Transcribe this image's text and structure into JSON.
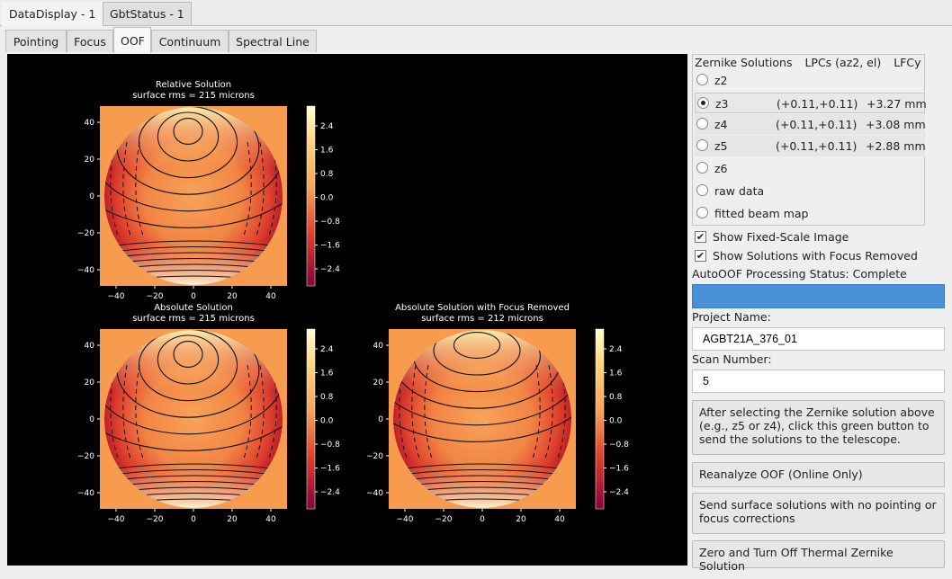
{
  "window_tabs": [
    {
      "label": "DataDisplay - 1",
      "active": true
    },
    {
      "label": "GbtStatus - 1",
      "active": false
    }
  ],
  "sub_tabs": [
    {
      "label": "Pointing",
      "active": false
    },
    {
      "label": "Focus",
      "active": false
    },
    {
      "label": "OOF",
      "active": true
    },
    {
      "label": "Continuum",
      "active": false
    },
    {
      "label": "Spectral Line",
      "active": false
    }
  ],
  "plots": [
    {
      "title": "Relative Solution",
      "subtitle": "surface rms = 215 microns"
    },
    {
      "title": "Absolute Solution",
      "subtitle": "surface rms = 215 microns"
    },
    {
      "title": "Absolute Solution with Focus Removed",
      "subtitle": "surface rms = 212 microns"
    }
  ],
  "plot_axes": {
    "x_ticks": [
      "−40",
      "−20",
      "0",
      "20",
      "40"
    ],
    "y_ticks": [
      "40",
      "20",
      "0",
      "−20",
      "−40"
    ],
    "colorbar_ticks": [
      "2.4",
      "1.6",
      "0.8",
      "0.0",
      "−0.8",
      "−1.6",
      "−2.4"
    ]
  },
  "zernike": {
    "headers": [
      "Zernike Solutions",
      "LPCs (az2, el)",
      "LFCy"
    ],
    "options": [
      {
        "name": "z2",
        "lpc": "",
        "lfc": "",
        "selected": false
      },
      {
        "name": "z3",
        "lpc": "(+0.11,+0.11)",
        "lfc": "+3.27 mm",
        "selected": true
      },
      {
        "name": "z4",
        "lpc": "(+0.11,+0.11)",
        "lfc": "+3.08 mm",
        "selected": false
      },
      {
        "name": "z5",
        "lpc": "(+0.11,+0.11)",
        "lfc": "+2.88 mm",
        "selected": false
      },
      {
        "name": "z6",
        "lpc": "",
        "lfc": "",
        "selected": false
      },
      {
        "name": "raw data",
        "lpc": "",
        "lfc": "",
        "selected": false
      },
      {
        "name": "fitted beam map",
        "lpc": "",
        "lfc": "",
        "selected": false
      }
    ]
  },
  "checkboxes": {
    "fixed_scale": {
      "label": "Show Fixed-Scale Image",
      "checked": true
    },
    "focus_removed": {
      "label": "Show Solutions with Focus Removed",
      "checked": true
    }
  },
  "status": {
    "label": "AutoOOF Processing Status: Complete",
    "progress": 1.0,
    "color": "#4a90d9"
  },
  "project": {
    "label": "Project Name:",
    "value": "AGBT21A_376_01"
  },
  "scan": {
    "label": "Scan Number:",
    "value": "5"
  },
  "buttons": {
    "send_solutions": "After selecting the Zernike solution above (e.g., z5 or z4), click this green button to send the solutions to the telescope.",
    "reanalyze": "Reanalyze OOF (Online Only)",
    "send_surface": "Send surface solutions with no pointing or focus corrections",
    "zero_thermal": "Zero and Turn Off Thermal Zernike Solution"
  },
  "icons": {
    "radio": "radio-icon",
    "checkbox": "checkmark-icon"
  }
}
